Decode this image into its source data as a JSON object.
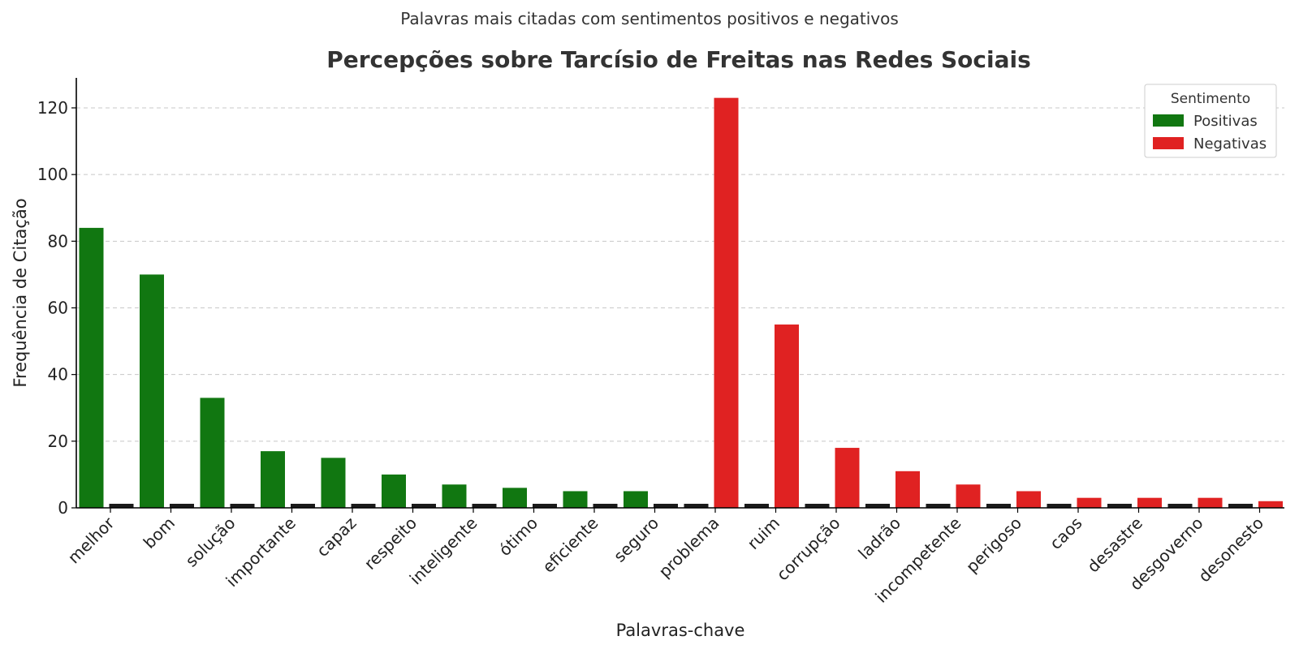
{
  "chart_data": {
    "type": "bar",
    "suptitle": "Palavras mais citadas com sentimentos positivos e negativos",
    "title": "Percepções sobre Tarcísio de Freitas nas Redes Sociais",
    "xlabel": "Palavras-chave",
    "ylabel": "Frequência de Citação",
    "ylim": [
      0,
      129
    ],
    "yticks": [
      0,
      20,
      40,
      60,
      80,
      100,
      120
    ],
    "grid": true,
    "legend": {
      "title": "Sentimento",
      "position": "top-right"
    },
    "categories": [
      "melhor",
      "bom",
      "solução",
      "importante",
      "capaz",
      "respeito",
      "inteligente",
      "ótimo",
      "eficiente",
      "seguro",
      "problema",
      "ruim",
      "corrupção",
      "ladrão",
      "incompetente",
      "perigoso",
      "caos",
      "desastre",
      "desgoverno",
      "desonesto"
    ],
    "series": [
      {
        "name": "Positivas",
        "color": "#117711",
        "values": [
          84,
          70,
          33,
          17,
          15,
          10,
          7,
          6,
          5,
          5,
          null,
          null,
          null,
          null,
          null,
          null,
          null,
          null,
          null,
          null
        ]
      },
      {
        "name": "Negativas",
        "color": "#e02222",
        "values": [
          null,
          null,
          null,
          null,
          null,
          null,
          null,
          null,
          null,
          null,
          123,
          55,
          18,
          11,
          7,
          5,
          3,
          3,
          3,
          2
        ]
      }
    ]
  }
}
